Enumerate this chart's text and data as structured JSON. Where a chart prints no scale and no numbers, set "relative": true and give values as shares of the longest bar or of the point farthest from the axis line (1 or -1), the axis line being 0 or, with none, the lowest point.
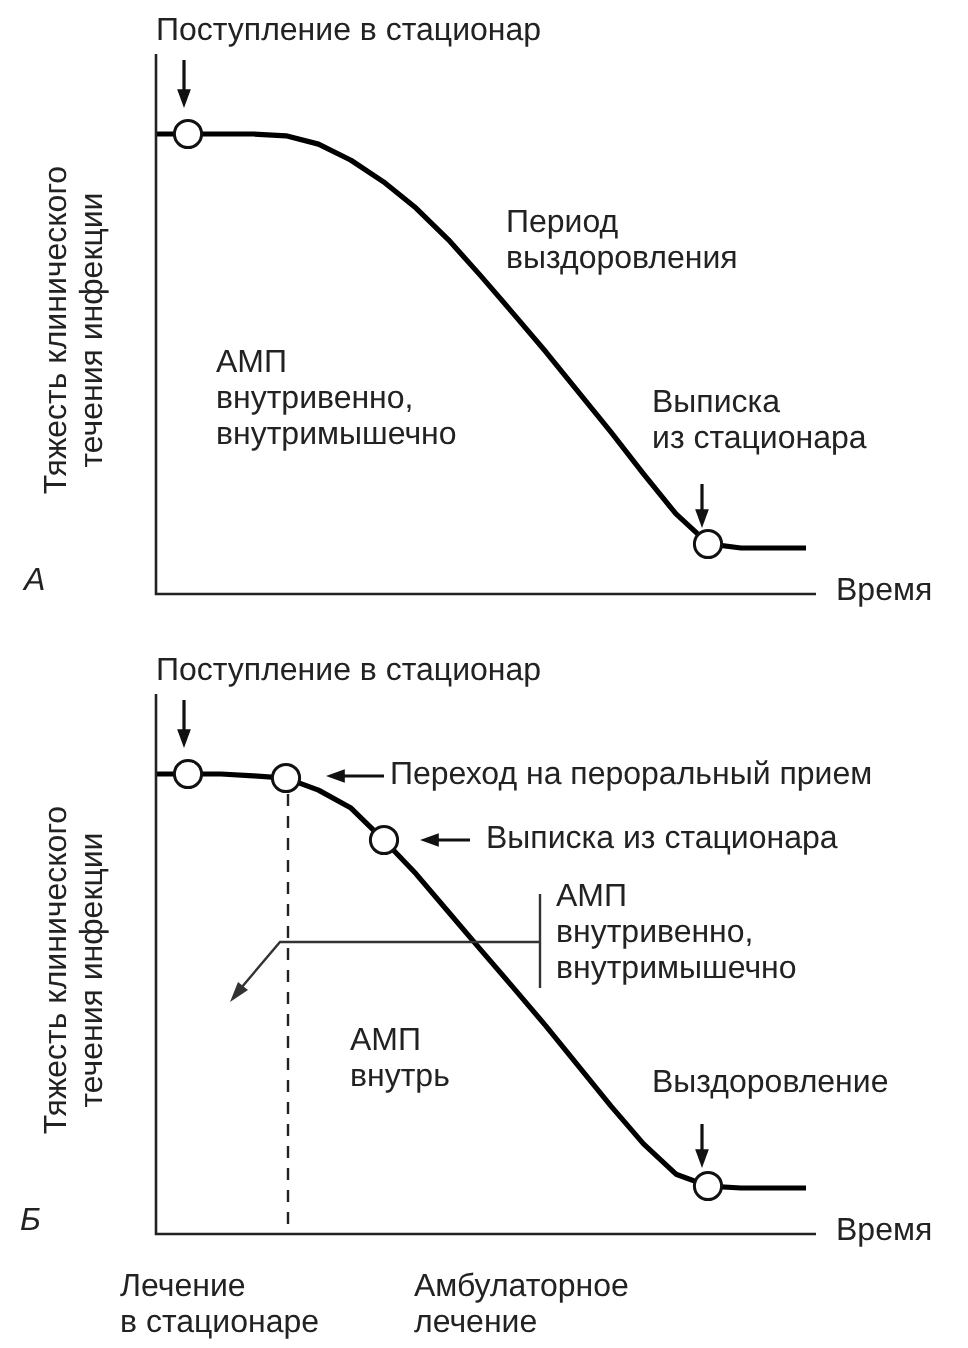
{
  "chart_data": [
    {
      "type": "line",
      "relative": true,
      "ylabel": "Тяжесть клинического течения инфекции",
      "xlabel": "Время",
      "categories": [
        null,
        null,
        null,
        null,
        null,
        null,
        null,
        null,
        null,
        null,
        null,
        null,
        null,
        null,
        null,
        null,
        null,
        null,
        null,
        null,
        null
      ],
      "series": [
        {
          "color": "#000000",
          "marker": "none",
          "values": [
            1.0,
            1.0,
            1.0,
            1.0,
            0.996,
            0.978,
            0.943,
            0.896,
            0.839,
            0.77,
            0.691,
            0.609,
            0.526,
            0.439,
            0.352,
            0.261,
            0.174,
            0.109,
            0.1,
            0.1,
            0.1
          ]
        }
      ],
      "annotations": [
        "Поступление в стационар",
        "Период\nвыздоровления",
        "АМП\nвнутривенно,\nвнутримышечно",
        "Выписка\nиз стационара",
        "А"
      ]
    },
    {
      "type": "line",
      "relative": true,
      "ylabel": "Тяжесть клинического течения инфекции",
      "xlabel": "Время",
      "categories": [
        null,
        null,
        null,
        null,
        null,
        null,
        null,
        null,
        null,
        null,
        null,
        null,
        null,
        null,
        null,
        null,
        null,
        null,
        null,
        null,
        null
      ],
      "series": [
        {
          "color": "#000000",
          "marker": "none",
          "values": [
            1.0,
            1.0,
            1.0,
            0.996,
            0.991,
            0.965,
            0.926,
            0.857,
            0.783,
            0.7,
            0.617,
            0.535,
            0.452,
            0.365,
            0.278,
            0.196,
            0.13,
            0.104,
            0.1,
            0.1,
            0.1
          ]
        }
      ],
      "annotations": [
        "Поступление в стационар",
        "Переход на пероральный прием",
        "Выписка из стационара",
        "АМП\nвнутривенно,\nвнутримышечно",
        "АМП\nвнутрь",
        "Выздоровление",
        "Б",
        "Лечение\nв стационаре",
        "Амбулаторное\nлечение"
      ]
    }
  ]
}
